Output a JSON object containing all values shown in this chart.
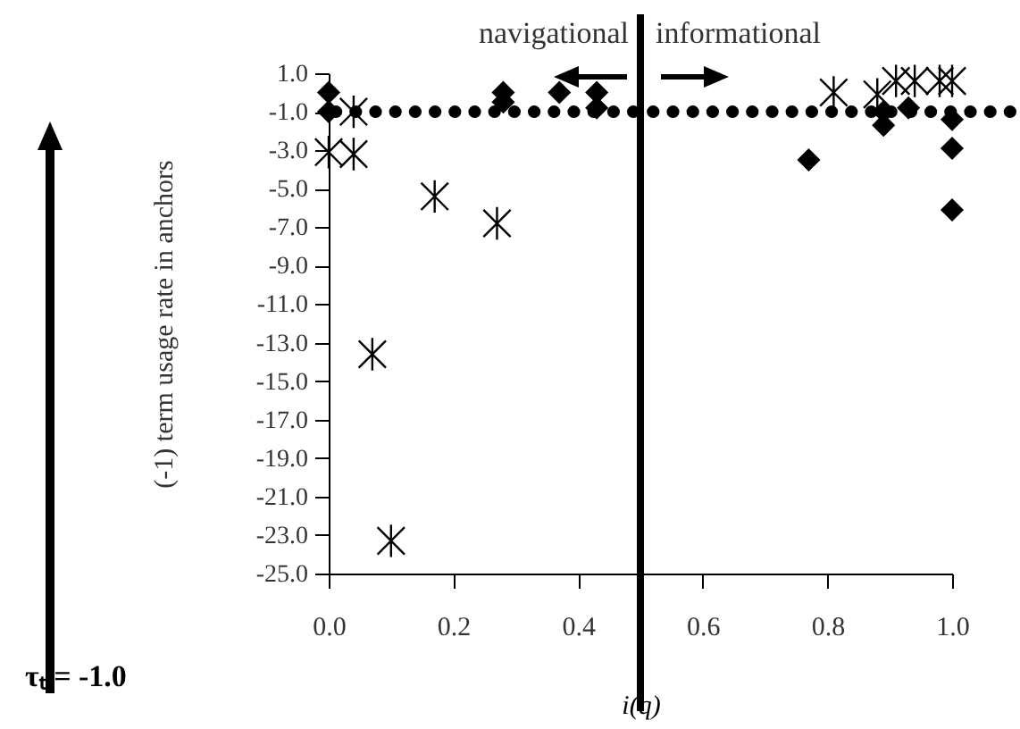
{
  "chart_data": {
    "type": "scatter",
    "xlabel": "i(q)",
    "ylabel": "(-1) term usage rate in anchors",
    "annotations": [
      "navigational",
      "informational"
    ],
    "xlim": [
      0,
      1
    ],
    "ylim": [
      -25,
      1
    ],
    "xticks": [
      {
        "value": 0,
        "label": "0.0"
      },
      {
        "value": 0.2,
        "label": "0.2"
      },
      {
        "value": 0.4,
        "label": "0.4"
      },
      {
        "value": 0.6,
        "label": "0.6"
      },
      {
        "value": 0.8,
        "label": "0.8"
      },
      {
        "value": 1,
        "label": "1.0"
      }
    ],
    "yticks": [
      {
        "value": 1,
        "label": "1.0"
      },
      {
        "value": -1,
        "label": "-1.0"
      },
      {
        "value": -3,
        "label": "-3.0"
      },
      {
        "value": -5,
        "label": "-5.0"
      },
      {
        "value": -7,
        "label": "-7.0"
      },
      {
        "value": -9,
        "label": "-9.0"
      },
      {
        "value": -11,
        "label": "-11.0"
      },
      {
        "value": -13,
        "label": "-13.0"
      },
      {
        "value": -15,
        "label": "-15.0"
      },
      {
        "value": -17,
        "label": "-17.0"
      },
      {
        "value": -19,
        "label": "-19.0"
      },
      {
        "value": -21,
        "label": "-21.0"
      },
      {
        "value": -23,
        "label": "-23.0"
      },
      {
        "value": -25,
        "label": "-25.0"
      }
    ],
    "grid": false,
    "ref_lines": [
      {
        "axis": "x",
        "value": 0.5,
        "color": "#000000",
        "line_style": "solid"
      },
      {
        "axis": "y",
        "value": -1,
        "label": "τₜ = -1.0",
        "color": "#000000",
        "line_style": "dotted"
      }
    ],
    "series": [
      {
        "color": "#000000",
        "marker": "diamond",
        "x": [
          0.0,
          0.0,
          0.28,
          0.28,
          0.37,
          0.43,
          0.43,
          0.77,
          0.89,
          0.89,
          0.93,
          1.0,
          1.0,
          1.0
        ],
        "values": [
          0.0,
          -1.0,
          0.0,
          -0.5,
          0.0,
          0.0,
          -0.8,
          -3.5,
          -1.7,
          -1.0,
          -0.8,
          -1.4,
          -2.9,
          -6.1
        ]
      },
      {
        "color": "#000000",
        "marker": "cross",
        "x": [
          0.04,
          0.0,
          0.04,
          0.17,
          0.27,
          0.07,
          0.1,
          0.81,
          0.88,
          0.91,
          0.94,
          0.98,
          1.0
        ],
        "values": [
          -1.0,
          -3.1,
          -3.2,
          -5.4,
          -6.8,
          -13.6,
          -23.3,
          0.0,
          -0.1,
          0.6,
          0.6,
          0.6,
          0.6
        ]
      }
    ]
  }
}
